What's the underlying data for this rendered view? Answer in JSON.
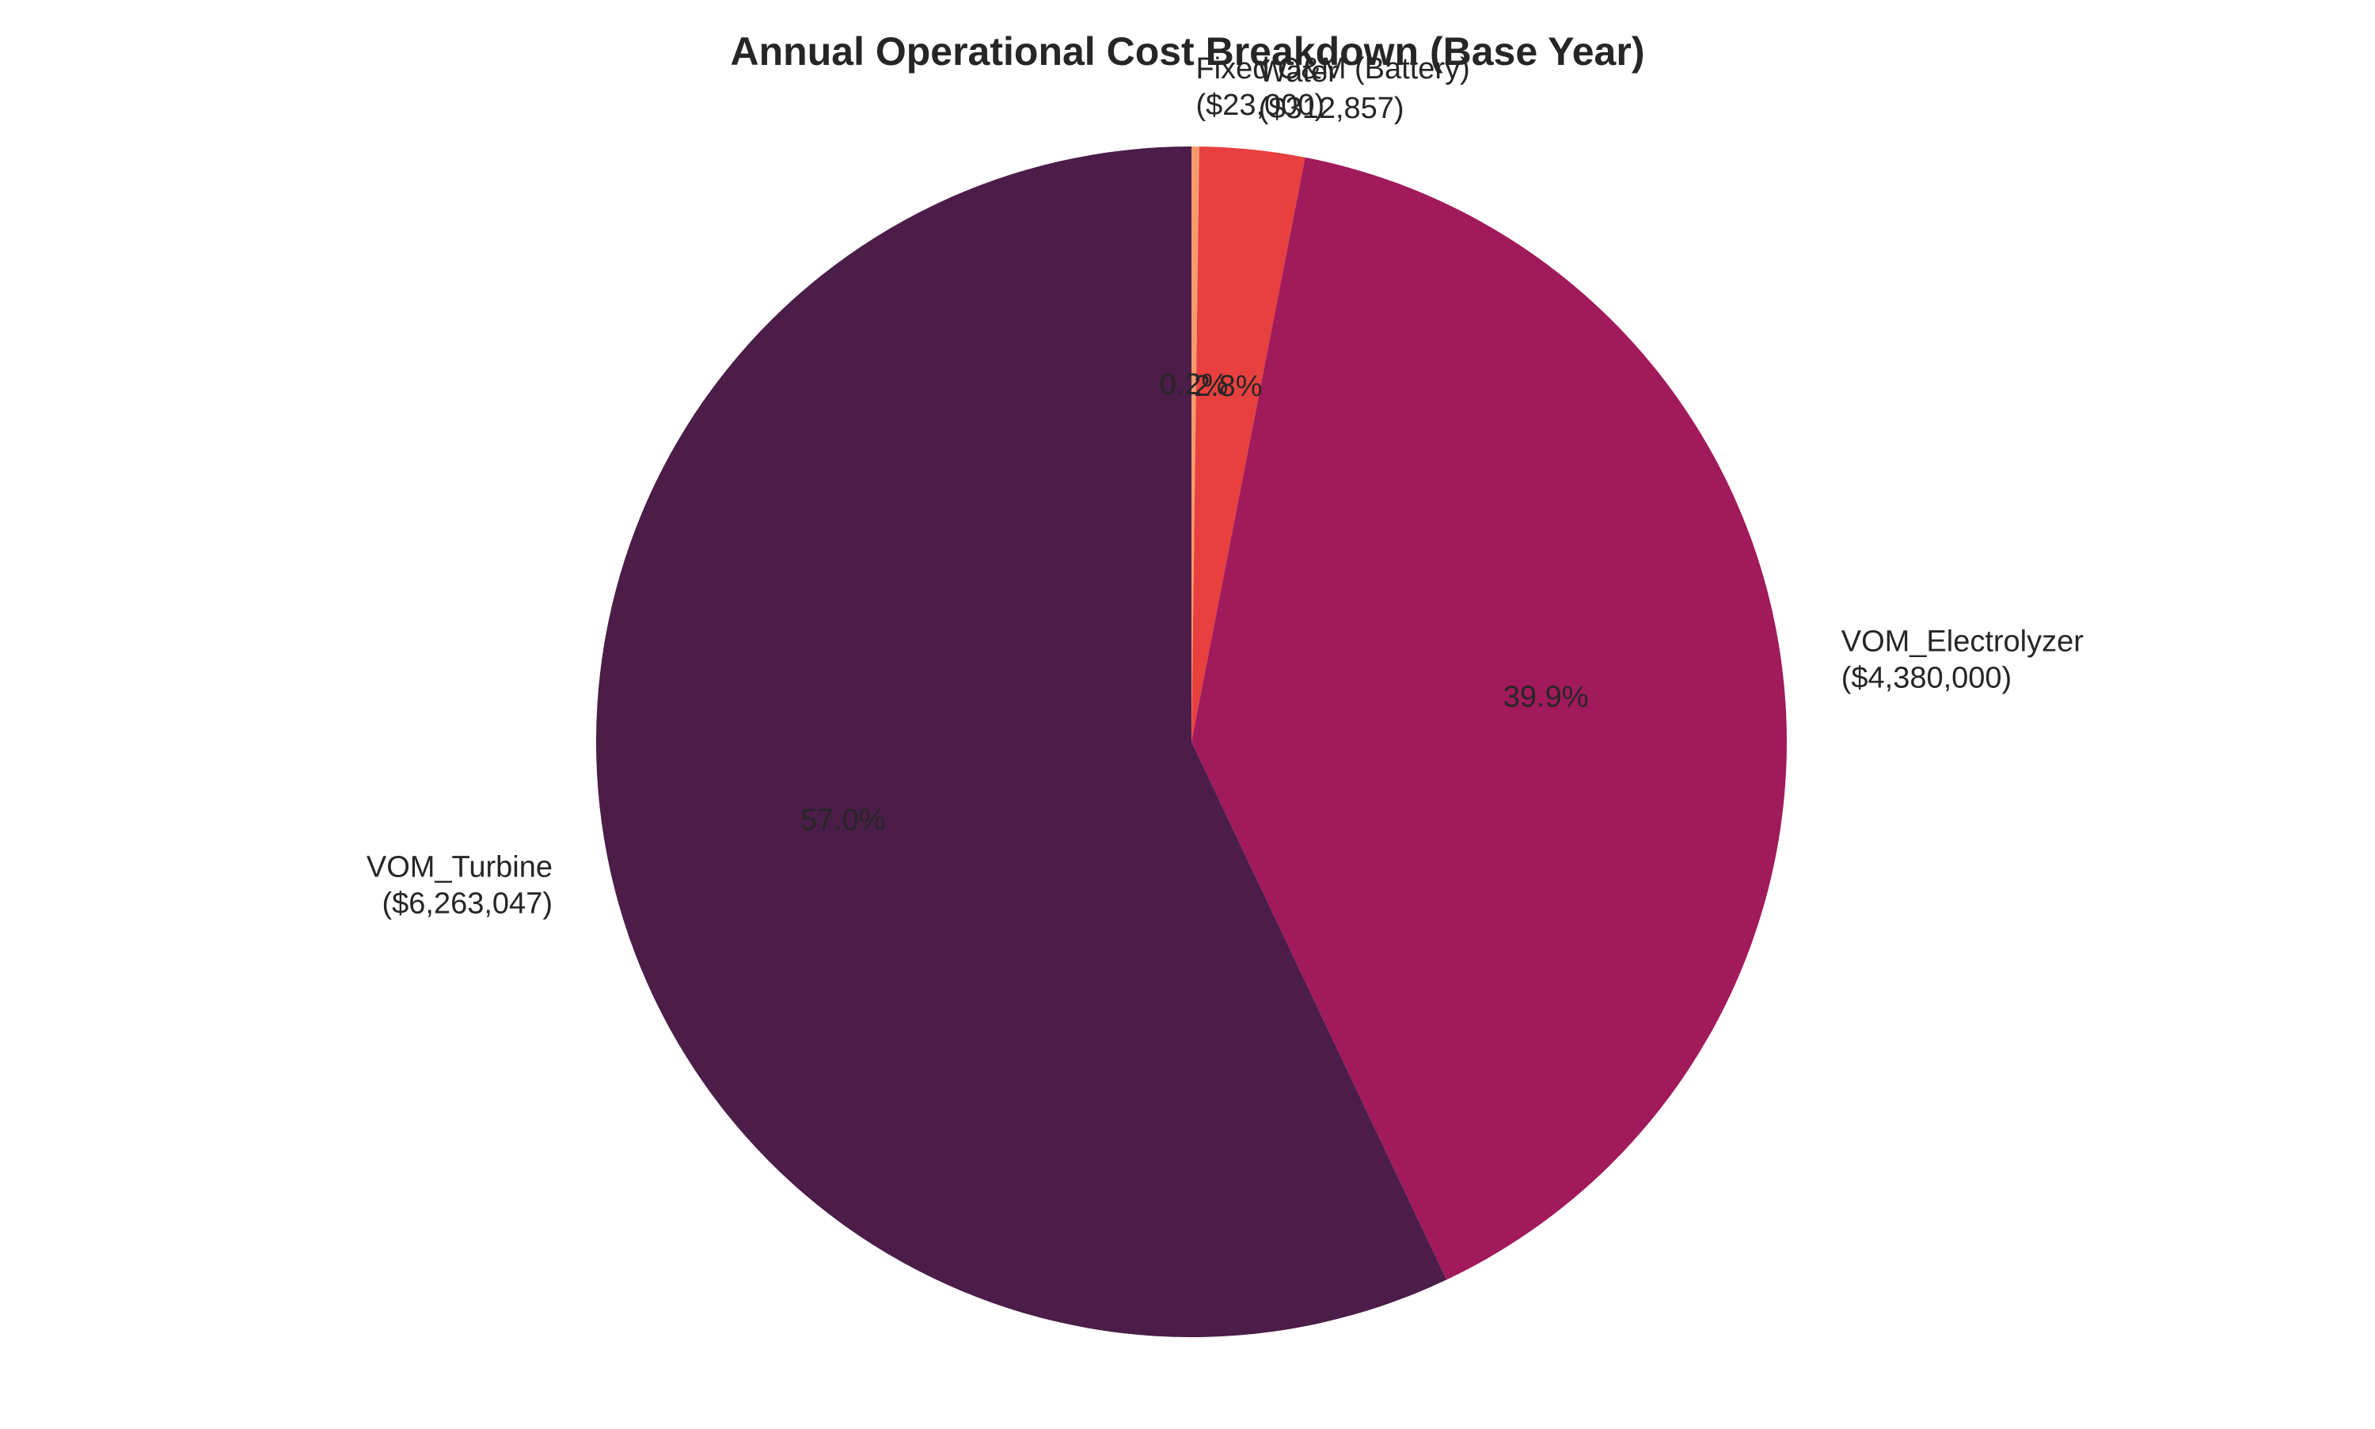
{
  "chart_data": {
    "type": "pie",
    "title": "Annual Operational Cost Breakdown (Base Year)",
    "start_angle_deg": 90,
    "direction": "clockwise",
    "slices": [
      {
        "label": "Fixed O&M (Battery)",
        "value": 23000,
        "value_text": "($23,000)",
        "pct_text": "0.2%",
        "color": "#f59b6c"
      },
      {
        "label": "Water",
        "value": 312857,
        "value_text": "($312,857)",
        "pct_text": "2.8%",
        "color": "#e8403f"
      },
      {
        "label": "VOM_Electrolyzer",
        "value": 4380000,
        "value_text": "($4,380,000)",
        "pct_text": "39.9%",
        "color": "#a11a5b"
      },
      {
        "label": "VOM_Turbine",
        "value": 6263047,
        "value_text": "($6,263,047)",
        "pct_text": "57.0%",
        "color": "#4b1d48"
      }
    ]
  }
}
